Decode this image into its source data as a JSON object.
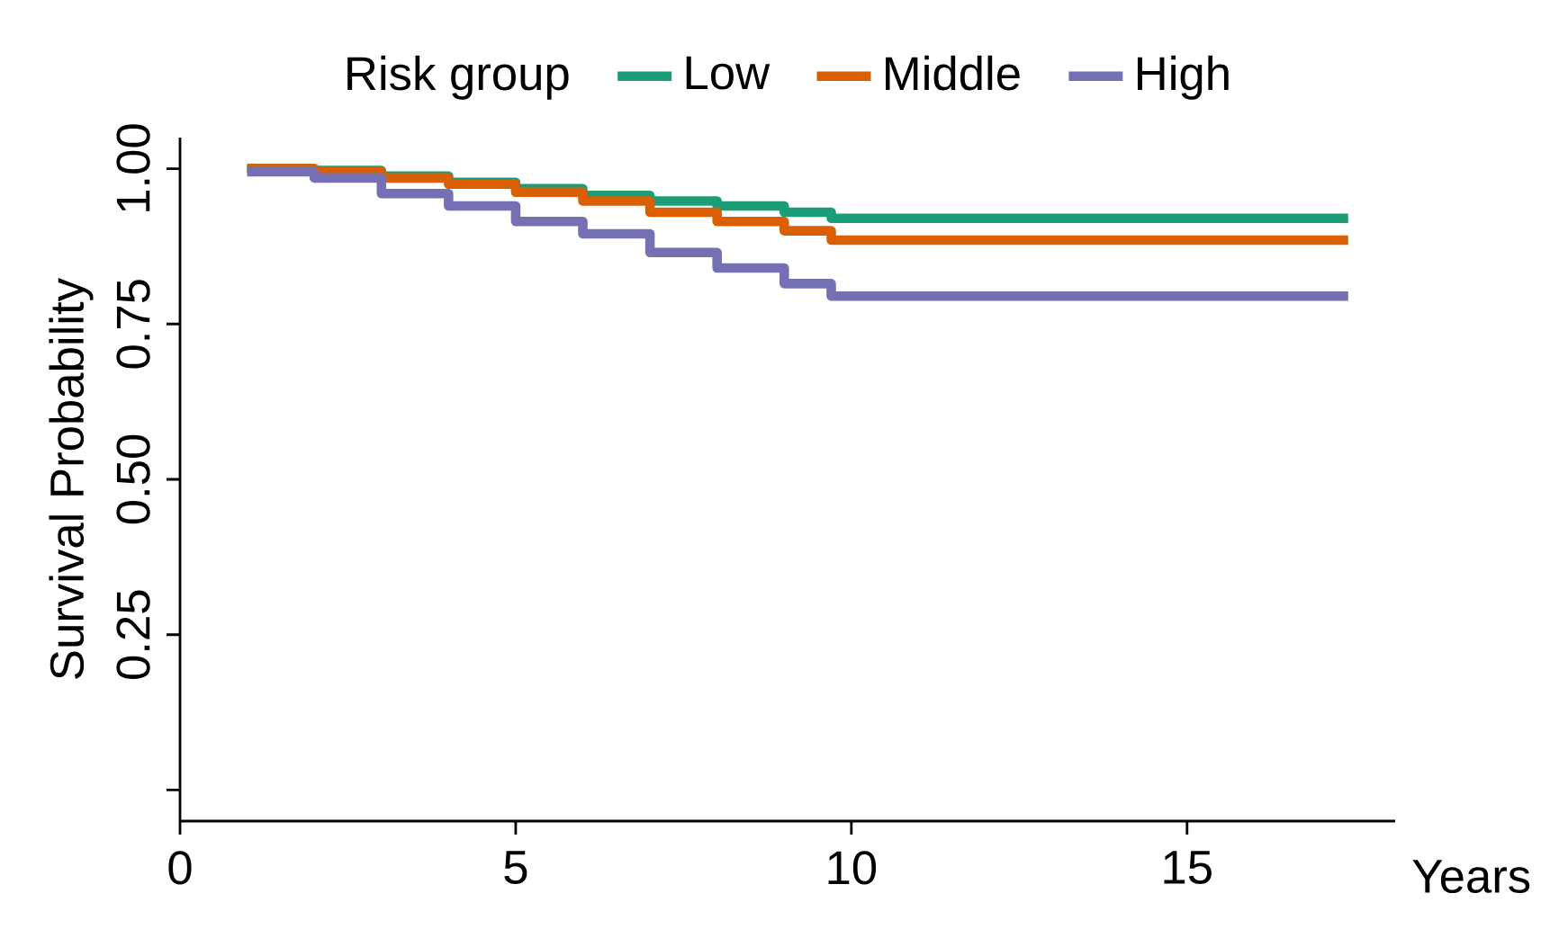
{
  "chart_data": {
    "type": "step",
    "ylabel": "Survival Probability",
    "xlabel": "Years",
    "legend_title": "Risk group",
    "legend": "top",
    "grid": false,
    "xlim": [
      0,
      18.1
    ],
    "xticks": [
      0,
      5,
      10,
      15
    ],
    "ylim": [
      -0.05,
      1.05
    ],
    "yticks": [
      {
        "value": 0,
        "label": null
      },
      {
        "value": 0.25,
        "label": "0.25"
      },
      {
        "value": 0.5,
        "label": "0.50"
      },
      {
        "value": 0.75,
        "label": "0.75"
      },
      {
        "value": 1,
        "label": "1.00"
      }
    ],
    "series": [
      {
        "name": "Low",
        "color": "#1b9e77",
        "x": [
          1,
          2,
          3,
          4,
          5,
          6,
          7,
          8,
          9,
          9.7,
          17.4
        ],
        "values": [
          1.0,
          0.997,
          0.988,
          0.978,
          0.968,
          0.957,
          0.948,
          0.94,
          0.93,
          0.92,
          0.92
        ]
      },
      {
        "name": "Middle",
        "color": "#d95f02",
        "x": [
          1,
          2,
          3,
          4,
          5,
          6,
          7,
          8,
          9,
          9.7,
          17.4
        ],
        "values": [
          1.0,
          0.995,
          0.985,
          0.975,
          0.962,
          0.948,
          0.93,
          0.915,
          0.9,
          0.885,
          0.885
        ]
      },
      {
        "name": "High",
        "color": "#7570b3",
        "x": [
          1,
          2,
          3,
          4,
          5,
          6,
          7,
          8,
          9,
          9.7,
          17.4
        ],
        "values": [
          0.995,
          0.985,
          0.96,
          0.94,
          0.915,
          0.895,
          0.865,
          0.84,
          0.815,
          0.795,
          0.795
        ]
      }
    ]
  }
}
